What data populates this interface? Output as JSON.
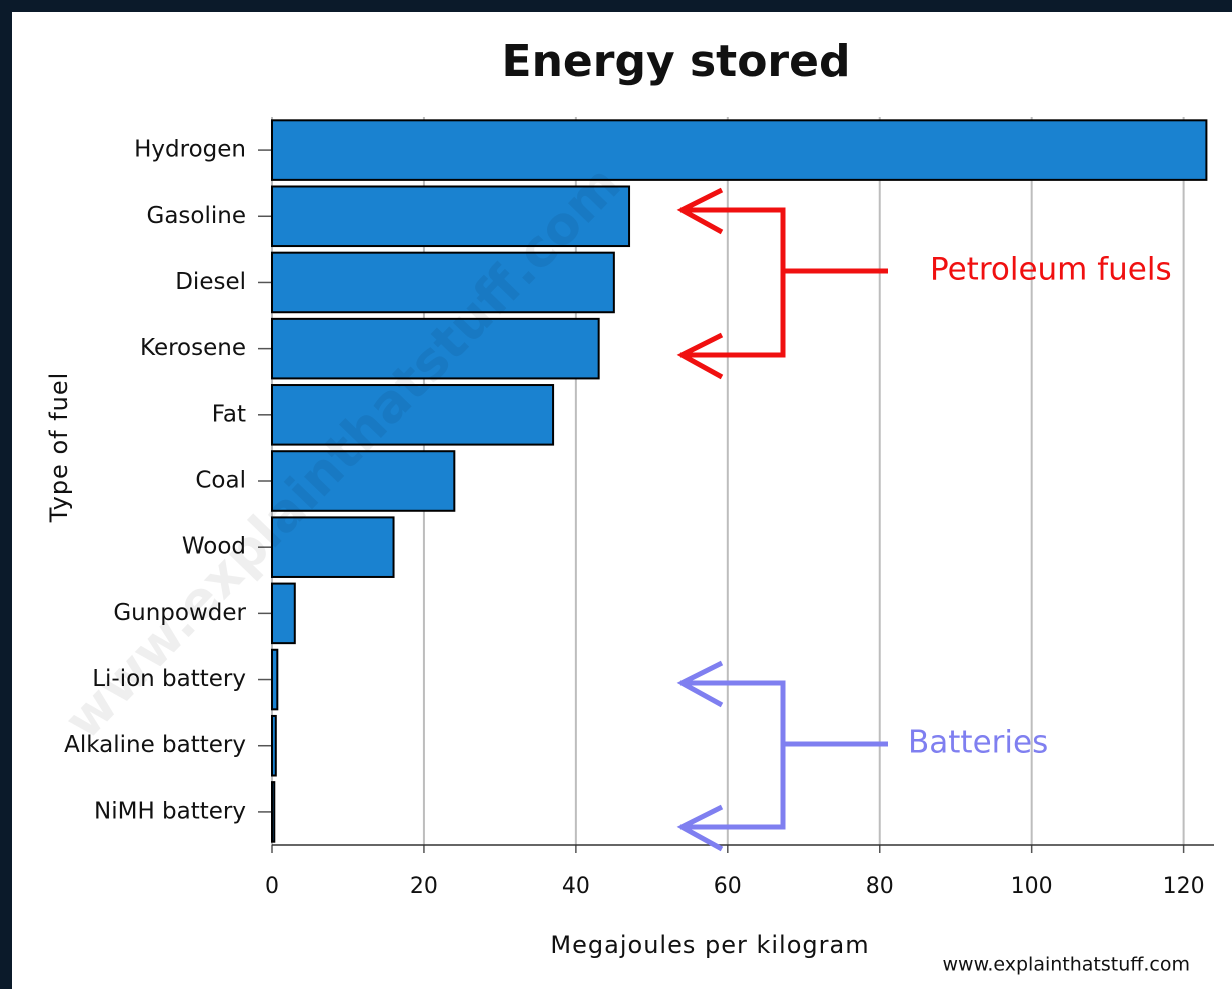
{
  "chart_data": {
    "type": "hbar",
    "title": "Energy stored",
    "x_label": "Megajoules per kilogram",
    "y_label": "Type of fuel",
    "categories": [
      "Hydrogen",
      "Gasoline",
      "Diesel",
      "Kerosene",
      "Fat",
      "Coal",
      "Wood",
      "Gunpowder",
      "Li-ion battery",
      "Alkaline battery",
      "NiMH battery"
    ],
    "values": [
      123,
      47,
      45,
      43,
      37,
      24,
      16,
      3,
      0.7,
      0.5,
      0.3
    ],
    "color": "#1a82d0",
    "xlim": [
      0,
      124
    ],
    "xticks": [
      0,
      20,
      40,
      60,
      80,
      100,
      120
    ],
    "grid": true,
    "annotations": [
      "Petroleum fuels",
      "Batteries"
    ],
    "watermark": "www.explainthatstuff.com",
    "credit": "www.explainthatstuff.com"
  }
}
